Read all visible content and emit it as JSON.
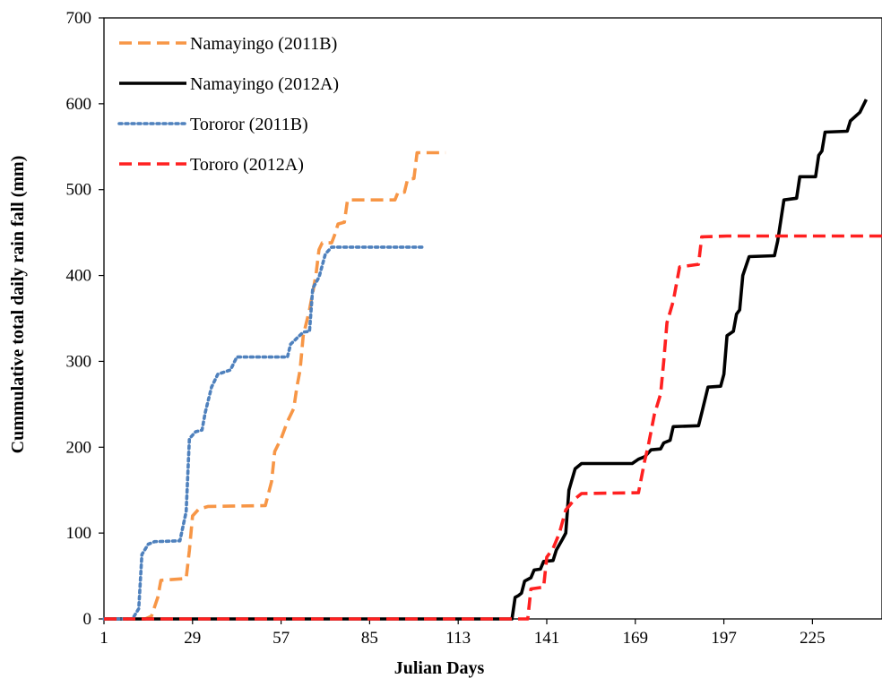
{
  "chart_data": {
    "type": "line",
    "title": "",
    "xlabel": "Julian Days",
    "ylabel": "Cummulative total daily rain fall (mm)",
    "xlim": [
      1,
      247
    ],
    "ylim": [
      0,
      700
    ],
    "xticks": [
      1,
      29,
      57,
      85,
      113,
      141,
      169,
      197,
      225
    ],
    "yticks": [
      0,
      100,
      200,
      300,
      400,
      500,
      600,
      700
    ],
    "grid": false,
    "legend_position": "top-left",
    "series": [
      {
        "name": "Namayingo (2011B)",
        "color": "#F79646",
        "dash": "dashed",
        "points": [
          [
            1,
            0
          ],
          [
            14,
            0
          ],
          [
            16,
            3
          ],
          [
            18,
            25
          ],
          [
            19,
            45
          ],
          [
            27,
            47
          ],
          [
            28,
            80
          ],
          [
            29,
            120
          ],
          [
            31,
            128
          ],
          [
            34,
            131
          ],
          [
            52,
            132
          ],
          [
            54,
            160
          ],
          [
            55,
            195
          ],
          [
            57,
            210
          ],
          [
            59,
            230
          ],
          [
            61,
            245
          ],
          [
            62,
            270
          ],
          [
            63,
            290
          ],
          [
            64,
            330
          ],
          [
            66,
            360
          ],
          [
            67,
            380
          ],
          [
            68,
            400
          ],
          [
            69,
            430
          ],
          [
            70,
            438
          ],
          [
            73,
            438
          ],
          [
            74,
            448
          ],
          [
            75,
            460
          ],
          [
            77,
            462
          ],
          [
            78,
            488
          ],
          [
            93,
            488
          ],
          [
            94,
            497
          ],
          [
            96,
            497
          ],
          [
            97,
            512
          ],
          [
            99,
            513
          ],
          [
            100,
            543
          ],
          [
            109,
            543
          ]
        ]
      },
      {
        "name": "Namayingo (2012A)",
        "color": "#000000",
        "dash": "solid",
        "points": [
          [
            1,
            0
          ],
          [
            130,
            0
          ],
          [
            131,
            25
          ],
          [
            132,
            27
          ],
          [
            133,
            30
          ],
          [
            134,
            44
          ],
          [
            136,
            48
          ],
          [
            137,
            57
          ],
          [
            139,
            58
          ],
          [
            140,
            67
          ],
          [
            143,
            68
          ],
          [
            144,
            80
          ],
          [
            146,
            93
          ],
          [
            147,
            100
          ],
          [
            148,
            150
          ],
          [
            150,
            175
          ],
          [
            152,
            181
          ],
          [
            168,
            181
          ],
          [
            170,
            186
          ],
          [
            172,
            189
          ],
          [
            174,
            197
          ],
          [
            177,
            198
          ],
          [
            178,
            205
          ],
          [
            180,
            208
          ],
          [
            181,
            224
          ],
          [
            189,
            225
          ],
          [
            190,
            240
          ],
          [
            192,
            270
          ],
          [
            196,
            271
          ],
          [
            197,
            285
          ],
          [
            198,
            330
          ],
          [
            200,
            335
          ],
          [
            201,
            355
          ],
          [
            202,
            360
          ],
          [
            203,
            400
          ],
          [
            205,
            422
          ],
          [
            213,
            423
          ],
          [
            214,
            440
          ],
          [
            216,
            488
          ],
          [
            220,
            490
          ],
          [
            221,
            515
          ],
          [
            226,
            515
          ],
          [
            227,
            540
          ],
          [
            228,
            545
          ],
          [
            229,
            567
          ],
          [
            236,
            568
          ],
          [
            237,
            580
          ],
          [
            240,
            590
          ],
          [
            242,
            605
          ]
        ]
      },
      {
        "name": "Tororor (2011B)",
        "color": "#4F81BD",
        "dash": "dotted",
        "points": [
          [
            1,
            0
          ],
          [
            10,
            0
          ],
          [
            12,
            12
          ],
          [
            13,
            75
          ],
          [
            15,
            87
          ],
          [
            17,
            90
          ],
          [
            25,
            91
          ],
          [
            27,
            125
          ],
          [
            28,
            210
          ],
          [
            30,
            218
          ],
          [
            32,
            220
          ],
          [
            33,
            240
          ],
          [
            35,
            270
          ],
          [
            37,
            285
          ],
          [
            41,
            290
          ],
          [
            43,
            305
          ],
          [
            59,
            305
          ],
          [
            60,
            320
          ],
          [
            64,
            334
          ],
          [
            66,
            335
          ],
          [
            67,
            385
          ],
          [
            69,
            398
          ],
          [
            71,
            425
          ],
          [
            73,
            433
          ],
          [
            102,
            433
          ]
        ]
      },
      {
        "name": "Tororo (2012A)",
        "color": "#FF2020",
        "dash": "dashed",
        "points": [
          [
            1,
            0
          ],
          [
            135,
            0
          ],
          [
            136,
            35
          ],
          [
            140,
            37
          ],
          [
            141,
            72
          ],
          [
            143,
            82
          ],
          [
            145,
            100
          ],
          [
            147,
            127
          ],
          [
            150,
            140
          ],
          [
            152,
            146
          ],
          [
            170,
            147
          ],
          [
            172,
            185
          ],
          [
            173,
            200
          ],
          [
            175,
            238
          ],
          [
            177,
            262
          ],
          [
            178,
            300
          ],
          [
            179,
            345
          ],
          [
            181,
            370
          ],
          [
            183,
            410
          ],
          [
            189,
            413
          ],
          [
            190,
            445
          ],
          [
            198,
            446
          ],
          [
            200,
            446
          ],
          [
            247,
            446
          ]
        ]
      }
    ]
  }
}
